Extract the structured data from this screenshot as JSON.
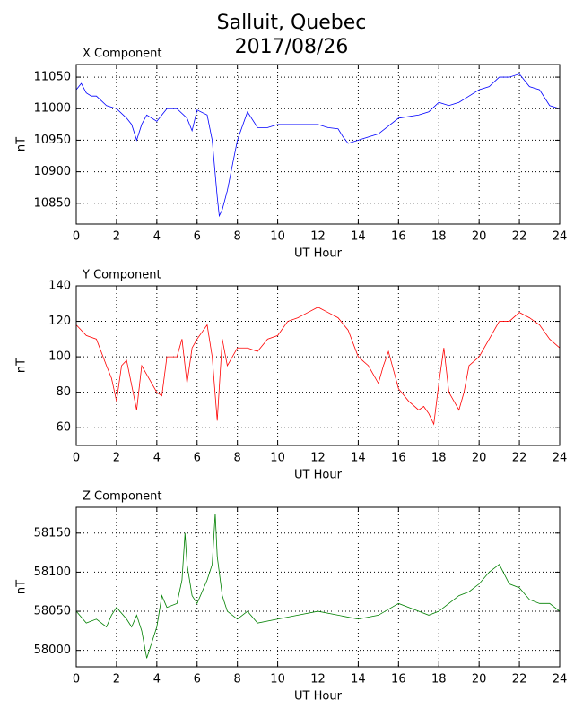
{
  "title": "Salluit, Quebec",
  "subtitle": "2017/08/26",
  "chart_data": [
    {
      "type": "line",
      "title": "X Component",
      "xlabel": "UT Hour",
      "ylabel": "nT",
      "grid": true,
      "xlim": [
        0,
        24
      ],
      "xticks": [
        0,
        2,
        4,
        6,
        8,
        10,
        12,
        14,
        16,
        18,
        20,
        22,
        24
      ],
      "ylim": [
        10817,
        11070
      ],
      "yticks": [
        10850,
        10900,
        10950,
        11000,
        11050
      ],
      "x": [
        0,
        0.25,
        0.5,
        0.75,
        1,
        1.5,
        2,
        2.5,
        2.75,
        3,
        3.25,
        3.5,
        4,
        4.5,
        5,
        5.5,
        5.75,
        6,
        6.5,
        6.75,
        7,
        7.1,
        7.25,
        7.5,
        7.75,
        8,
        8.5,
        9,
        9.5,
        10,
        11,
        12,
        12.5,
        13,
        13.25,
        13.5,
        14,
        15,
        16,
        17,
        17.5,
        18,
        18.5,
        19,
        19.5,
        20,
        20.5,
        21,
        21.5,
        22,
        22.5,
        23,
        23.5,
        24
      ],
      "series": [
        {
          "color": "#0000ff",
          "values": [
            11030,
            11040,
            11025,
            11020,
            11020,
            11005,
            11000,
            10985,
            10975,
            10950,
            10975,
            10990,
            10980,
            11000,
            11000,
            10985,
            10965,
            10998,
            10990,
            10950,
            10860,
            10830,
            10840,
            10870,
            10910,
            10950,
            10995,
            10970,
            10970,
            10975,
            10975,
            10975,
            10970,
            10968,
            10955,
            10945,
            10950,
            10960,
            10985,
            10990,
            10995,
            11010,
            11005,
            11010,
            11020,
            11030,
            11035,
            11050,
            11050,
            11055,
            11035,
            11030,
            11005,
            11000
          ]
        }
      ]
    },
    {
      "type": "line",
      "title": "Y Component",
      "xlabel": "UT Hour",
      "ylabel": "nT",
      "grid": true,
      "xlim": [
        0,
        24
      ],
      "xticks": [
        0,
        2,
        4,
        6,
        8,
        10,
        12,
        14,
        16,
        18,
        20,
        22,
        24
      ],
      "ylim": [
        50,
        140
      ],
      "yticks": [
        60,
        80,
        100,
        120,
        140
      ],
      "x": [
        0,
        0.5,
        1,
        1.5,
        1.75,
        2,
        2.25,
        2.5,
        3,
        3.25,
        3.5,
        4,
        4.25,
        4.5,
        5,
        5.25,
        5.5,
        5.75,
        6,
        6.5,
        6.75,
        7,
        7.25,
        7.5,
        8,
        8.5,
        9,
        9.5,
        10,
        10.5,
        11,
        11.5,
        12,
        12.5,
        13,
        13.5,
        14,
        14.5,
        15,
        15.25,
        15.5,
        16,
        16.5,
        17,
        17.25,
        17.5,
        17.75,
        18,
        18.25,
        18.5,
        19,
        19.25,
        19.5,
        20,
        20.5,
        21,
        21.5,
        22,
        22.5,
        23,
        23.5,
        24
      ],
      "series": [
        {
          "color": "#ff0000",
          "values": [
            118,
            112,
            110,
            95,
            88,
            75,
            95,
            98,
            70,
            95,
            90,
            80,
            78,
            100,
            100,
            110,
            85,
            105,
            110,
            118,
            100,
            64,
            110,
            95,
            105,
            105,
            103,
            110,
            112,
            120,
            122,
            125,
            128,
            125,
            122,
            115,
            100,
            95,
            85,
            95,
            103,
            82,
            75,
            70,
            72,
            68,
            62,
            85,
            105,
            80,
            70,
            80,
            95,
            100,
            110,
            120,
            120,
            125,
            122,
            118,
            110,
            105
          ]
        }
      ]
    },
    {
      "type": "line",
      "title": "Z Component",
      "xlabel": "UT Hour",
      "ylabel": "nT",
      "grid": true,
      "xlim": [
        0,
        24
      ],
      "xticks": [
        0,
        2,
        4,
        6,
        8,
        10,
        12,
        14,
        16,
        18,
        20,
        22,
        24
      ],
      "ylim": [
        57979,
        58183
      ],
      "yticks": [
        58000,
        58050,
        58100,
        58150
      ],
      "x": [
        0,
        0.5,
        1,
        1.5,
        1.75,
        2,
        2.5,
        2.75,
        3,
        3.25,
        3.5,
        4,
        4.25,
        4.5,
        5,
        5.25,
        5.4,
        5.5,
        5.75,
        6,
        6.5,
        6.75,
        6.9,
        7,
        7.25,
        7.5,
        8,
        8.5,
        9,
        10,
        11,
        12,
        13,
        14,
        15,
        16,
        17,
        17.5,
        18,
        18.5,
        19,
        19.5,
        20,
        20.5,
        21,
        21.5,
        22,
        22.5,
        23,
        23.5,
        24
      ],
      "series": [
        {
          "color": "#008000",
          "values": [
            58050,
            58035,
            58040,
            58030,
            58045,
            58055,
            58040,
            58030,
            58045,
            58025,
            57990,
            58030,
            58070,
            58055,
            58060,
            58090,
            58150,
            58110,
            58070,
            58060,
            58090,
            58110,
            58175,
            58120,
            58070,
            58050,
            58040,
            58050,
            58035,
            58040,
            58045,
            58050,
            58045,
            58040,
            58045,
            58060,
            58050,
            58045,
            58050,
            58060,
            58070,
            58075,
            58085,
            58100,
            58110,
            58085,
            58080,
            58065,
            58060,
            58060,
            58050
          ]
        }
      ]
    }
  ]
}
